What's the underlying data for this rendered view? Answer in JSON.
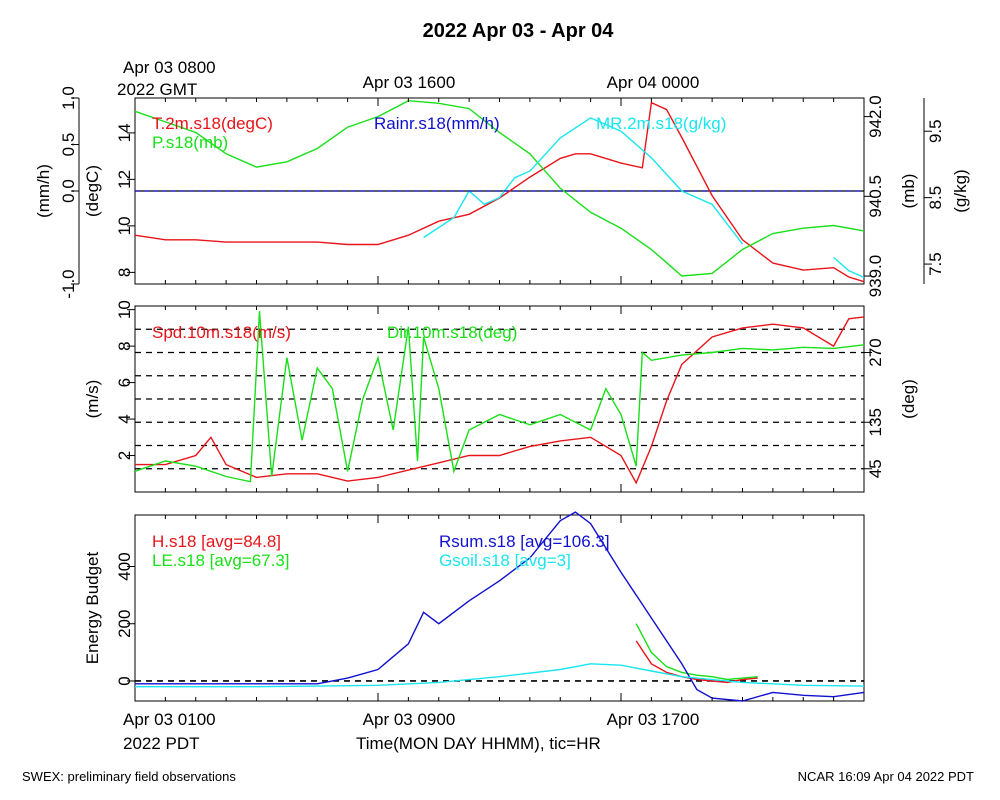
{
  "title": "2022 Apr 03 - Apr 04",
  "footer": {
    "left": "SWEX: preliminary field observations",
    "right": "NCAR 16:09 Apr 04 2022 PDT"
  },
  "top_time_labels": {
    "t0_line1": "Apr 03 0800",
    "t0_line2": "2022 GMT",
    "t1": "Apr 03 1600",
    "t2": "Apr 04 0000"
  },
  "bottom_time_labels": {
    "t0_line1": "Apr 03 0100",
    "t0_line2": "2022 PDT",
    "t1": "Apr 03 0900",
    "t2": "Apr 03 1700",
    "xlabel": "Time(MON DAY HHMM), tic=HR"
  },
  "colors": {
    "red": "#e8141a",
    "green": "#19e019",
    "blue": "#1010d0",
    "cyan": "#19e6f0",
    "black": "#000000"
  },
  "chart_data": [
    {
      "type": "line",
      "panel": "top",
      "x_unit": "hours since Apr 03 0100 PDT",
      "xlim": [
        0,
        24
      ],
      "axes": {
        "rain": {
          "label": "(mm/h)",
          "ticks": [
            "-1.0",
            "0.0",
            "0.5",
            "1.0"
          ],
          "range": [
            -1.0,
            1.0
          ]
        },
        "temp": {
          "label": "(degC)",
          "ticks": [
            "8",
            "10",
            "12",
            "14"
          ],
          "range": [
            7.5,
            15.5
          ]
        },
        "pres": {
          "label": "(mb)",
          "ticks": [
            "939.0",
            "940.5",
            "942.0"
          ],
          "range": [
            938.85,
            942.35
          ]
        },
        "mr": {
          "label": "(g/kg)",
          "ticks": [
            "7.5",
            "8.5",
            "9.5"
          ],
          "range": [
            7.2,
            10.0
          ]
        }
      },
      "series": [
        {
          "name": "T.2m.s18(degC)",
          "color": "red",
          "axis": "temp",
          "x": [
            0,
            1,
            2,
            3,
            4,
            5,
            6,
            7,
            8,
            9,
            10,
            11,
            12,
            13,
            14,
            14.5,
            15,
            16,
            16.7,
            17,
            17.5,
            18,
            19,
            20,
            21,
            22,
            23,
            23.5,
            24
          ],
          "y": [
            9.6,
            9.4,
            9.4,
            9.3,
            9.3,
            9.3,
            9.3,
            9.2,
            9.2,
            9.6,
            10.2,
            10.5,
            11.2,
            12.1,
            12.9,
            13.1,
            13.1,
            12.7,
            12.5,
            15.3,
            15.0,
            13.8,
            11.3,
            9.4,
            8.4,
            8.1,
            8.2,
            7.8,
            7.6
          ]
        },
        {
          "name": "P.s18(mb)",
          "color": "green",
          "axis": "pres",
          "x": [
            0,
            1,
            2,
            3,
            4,
            5,
            6,
            7,
            8,
            9,
            10,
            11,
            12,
            13,
            14,
            15,
            16,
            17,
            17.5,
            18,
            19,
            20,
            21,
            22,
            23,
            24
          ],
          "y": [
            942.1,
            941.9,
            941.7,
            941.3,
            941.05,
            941.15,
            941.4,
            941.8,
            942.0,
            942.3,
            942.25,
            942.15,
            941.7,
            941.3,
            940.65,
            940.2,
            939.9,
            939.5,
            939.25,
            939.0,
            939.05,
            939.5,
            939.8,
            939.9,
            939.95,
            939.85
          ]
        },
        {
          "name": "MR.2m.s18(g/kg)",
          "color": "cyan",
          "axis": "mr",
          "x": [
            9.5,
            10.5,
            11,
            11.5,
            12,
            12.5,
            13,
            14,
            15,
            16,
            17,
            18,
            19,
            20,
            21,
            22,
            23,
            23.5,
            24
          ],
          "y": [
            7.9,
            8.2,
            8.6,
            8.4,
            8.5,
            8.8,
            8.9,
            9.4,
            9.7,
            9.5,
            9.1,
            8.6,
            8.4,
            7.8,
            null,
            null,
            7.6,
            7.4,
            7.3
          ]
        },
        {
          "name": "Rainr.s18(mm/h)",
          "color": "blue",
          "axis": "rain",
          "x": [
            0,
            24
          ],
          "y": [
            0.0,
            0.0
          ]
        }
      ]
    },
    {
      "type": "line",
      "panel": "middle",
      "x_unit": "hours since Apr 03 0100 PDT",
      "xlim": [
        0,
        24
      ],
      "axes": {
        "spd": {
          "label": "(m/s)",
          "ticks": [
            "2",
            "4",
            "6",
            "8",
            "10"
          ],
          "range": [
            0,
            10.2
          ]
        },
        "dir": {
          "label": "(deg)",
          "ticks": [
            "45",
            "135",
            "270"
          ],
          "range": [
            0,
            360
          ]
        }
      },
      "reference_lines_deg": [
        45,
        90,
        135,
        180,
        225,
        270,
        315,
        360
      ],
      "series": [
        {
          "name": "Spd.10m.s18(m/s)",
          "color": "red",
          "axis": "spd",
          "x": [
            0,
            1,
            2,
            2.5,
            3,
            4,
            5,
            6,
            7,
            8,
            9,
            10,
            11,
            12,
            13,
            14,
            15,
            16,
            16.5,
            17,
            17.5,
            18,
            19,
            20,
            21,
            22,
            23,
            23.5,
            24
          ],
          "y": [
            1.5,
            1.5,
            2.0,
            3.0,
            1.5,
            0.8,
            1.0,
            1.0,
            0.6,
            0.8,
            1.2,
            1.6,
            2.0,
            2.0,
            2.5,
            2.8,
            3.0,
            2.0,
            0.5,
            2.5,
            5.0,
            7.0,
            8.5,
            9.0,
            9.2,
            9.0,
            8.0,
            9.5,
            9.6
          ]
        },
        {
          "name": "Dir.10m.s18(deg)",
          "color": "green",
          "axis": "dir",
          "x": [
            0,
            1,
            2,
            3,
            3.8,
            4.1,
            4.5,
            5,
            5.5,
            6,
            6.5,
            7,
            7.5,
            8,
            8.5,
            9,
            9.3,
            9.5,
            10,
            10.5,
            11,
            12,
            13,
            14,
            15,
            15.5,
            16,
            16.5,
            16.7,
            17,
            18,
            19,
            20,
            21,
            22,
            23,
            24
          ],
          "y": [
            40,
            60,
            50,
            30,
            20,
            350,
            30,
            260,
            100,
            240,
            200,
            40,
            180,
            260,
            120,
            320,
            60,
            300,
            200,
            40,
            120,
            150,
            130,
            150,
            120,
            200,
            150,
            50,
            270,
            255,
            265,
            270,
            278,
            275,
            280,
            278,
            285
          ]
        },
        {
          "name": "Dir.10m.s18(deg)",
          "color": "green",
          "axis": "dir",
          "x": [],
          "y": []
        }
      ]
    },
    {
      "type": "line",
      "panel": "bottom",
      "x_unit": "hours since Apr 03 0100 PDT",
      "xlim": [
        0,
        24
      ],
      "ylabel": "Energy Budget",
      "yticks": [
        "0",
        "200",
        "400"
      ],
      "ylim": [
        -70,
        580
      ],
      "series": [
        {
          "name": "H.s18 [avg=84.8]",
          "color": "red",
          "x": [
            16.5,
            17.0,
            17.5,
            18.0,
            18.5,
            19.0,
            19.5,
            20.0,
            20.5
          ],
          "y": [
            140,
            60,
            30,
            15,
            5,
            0,
            -5,
            5,
            10
          ]
        },
        {
          "name": "LE.s18 [avg=67.3]",
          "color": "green",
          "x": [
            16.5,
            17.0,
            17.5,
            18.0,
            18.5,
            19.0,
            19.5,
            20.0,
            20.5
          ],
          "y": [
            200,
            100,
            50,
            30,
            20,
            15,
            5,
            10,
            15
          ]
        },
        {
          "name": "Rsum.s18 [avg=106.3]",
          "color": "blue",
          "x": [
            0,
            2,
            4,
            6,
            7,
            8,
            9,
            9.5,
            10,
            11,
            12,
            13,
            14,
            14.5,
            15,
            16,
            17,
            18,
            18.5,
            19,
            20,
            21,
            22,
            23,
            24
          ],
          "y": [
            -10,
            -10,
            -10,
            -10,
            10,
            40,
            130,
            240,
            200,
            280,
            350,
            430,
            560,
            590,
            550,
            380,
            220,
            60,
            -30,
            -60,
            -70,
            -40,
            -50,
            -55,
            -40
          ]
        },
        {
          "name": "Gsoil.s18 [avg=3]",
          "color": "cyan",
          "x": [
            0,
            2,
            4,
            6,
            8,
            10,
            12,
            14,
            15,
            16,
            17,
            18,
            20,
            22,
            24
          ],
          "y": [
            -20,
            -20,
            -20,
            -18,
            -15,
            -5,
            15,
            40,
            60,
            55,
            35,
            15,
            -5,
            -15,
            -18
          ]
        }
      ]
    }
  ]
}
